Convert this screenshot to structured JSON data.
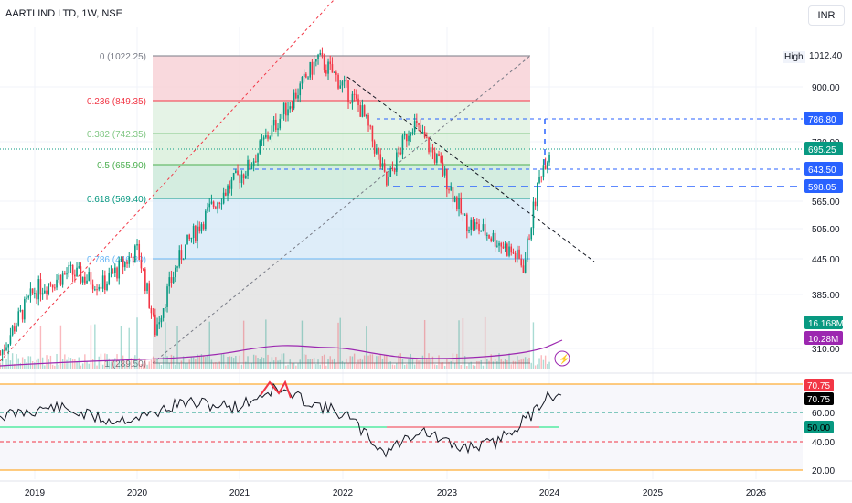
{
  "header": {
    "title": "AARTI IND LTD, 1W, NSE",
    "currency": "INR",
    "high_label": "High",
    "high_value": "1012.40"
  },
  "price_axis": {
    "ticks": [
      "900.00",
      "720.00",
      "565.00",
      "505.00",
      "445.00",
      "385.00",
      "310.00"
    ]
  },
  "price_tags": [
    {
      "value": "786.80",
      "bg": "#2962ff",
      "fg": "#ffffff"
    },
    {
      "value": "695.25",
      "bg": "#089981",
      "fg": "#ffffff"
    },
    {
      "value": "643.50",
      "bg": "#2962ff",
      "fg": "#ffffff"
    },
    {
      "value": "598.05",
      "bg": "#2962ff",
      "fg": "#ffffff"
    },
    {
      "value": "16.168M",
      "bg": "#089981",
      "fg": "#ffffff"
    },
    {
      "value": "10.28M",
      "bg": "#9c27b0",
      "fg": "#ffffff"
    }
  ],
  "rsi_axis": {
    "ticks": [
      "60.00",
      "40.00",
      "20.00"
    ]
  },
  "rsi_tags": [
    {
      "value": "70.75",
      "bg": "#f23645",
      "fg": "#ffffff"
    },
    {
      "value": "70.75",
      "bg": "#000000",
      "fg": "#ffffff"
    },
    {
      "value": "50.00",
      "bg": "#089981",
      "fg": "#000000"
    }
  ],
  "time_axis": {
    "ticks": [
      "2019",
      "2020",
      "2021",
      "2022",
      "2023",
      "2024",
      "2025",
      "2026"
    ]
  },
  "fib_levels": [
    {
      "label": "0 (1022.25)",
      "color": "#787b86"
    },
    {
      "label": "0.236 (849.35)",
      "color": "#f23645"
    },
    {
      "label": "0.382 (742.35)",
      "color": "#81c784"
    },
    {
      "label": "0.5 (655.90)",
      "color": "#4caf50"
    },
    {
      "label": "0.618 (569.40)",
      "color": "#089981"
    },
    {
      "label": "0.786 (446.30)",
      "color": "#64b5f6"
    },
    {
      "label": "1 (289.50)",
      "color": "#787b86"
    }
  ],
  "chart_data": {
    "type": "candlestick",
    "symbol": "AARTI IND LTD",
    "interval": "1W",
    "exchange": "NSE",
    "x_range": [
      "2018-08",
      "2026-08"
    ],
    "y_range": [
      290,
      1030
    ],
    "scale": "log",
    "x": [
      "2018-09",
      "2019-01",
      "2019-05",
      "2019-09",
      "2020-01",
      "2020-03",
      "2020-06",
      "2020-10",
      "2021-02",
      "2021-05",
      "2021-08",
      "2021-10",
      "2021-12",
      "2022-03",
      "2022-06",
      "2022-09",
      "2022-12",
      "2023-03",
      "2023-06",
      "2023-09",
      "2023-10",
      "2023-12",
      "2024-01"
    ],
    "close": [
      300,
      390,
      420,
      400,
      460,
      330,
      450,
      560,
      650,
      770,
      900,
      1012,
      940,
      820,
      600,
      780,
      660,
      520,
      490,
      450,
      430,
      640,
      695
    ],
    "last_price": 695.25,
    "volume_last": "16.168M",
    "volume_ma": "10.28M",
    "rsi": {
      "last": 70.75,
      "levels": [
        60,
        40
      ],
      "rsi_ma": 50.0
    },
    "horizontal_levels": [
      786.8,
      643.5,
      598.05
    ]
  }
}
